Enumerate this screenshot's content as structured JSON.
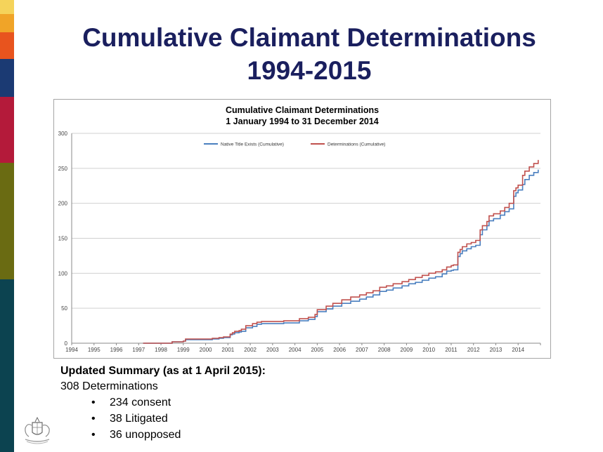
{
  "slide": {
    "title_line1": "Cumulative Claimant Determinations",
    "title_line2": "1994-2015",
    "title_color": "#1a1f5e",
    "band_colors": [
      "#f5d35a",
      "#f0a428",
      "#e8541e",
      "#1b3a73",
      "#b41a3a",
      "#6a6b12",
      "#0c4350"
    ]
  },
  "summary": {
    "heading": "Updated Summary (as at 1 April 2015):",
    "total": "308 Determinations",
    "items": [
      {
        "bullet": "•",
        "text": "234 consent"
      },
      {
        "bullet": "•",
        "text": "38 Litigated"
      },
      {
        "bullet": "•",
        "text": "36 unopposed"
      }
    ]
  },
  "chart_data": {
    "type": "line",
    "title": "Cumulative Claimant Determinations",
    "subtitle": "1 January 1994 to 31 December 2014",
    "xlabel": "",
    "ylabel": "",
    "x_ticks": [
      "1994",
      "1995",
      "1996",
      "1997",
      "1998",
      "1999",
      "2000",
      "2001",
      "2002",
      "2003",
      "2004",
      "2005",
      "2006",
      "2007",
      "2008",
      "2009",
      "2010",
      "2011",
      "2012",
      "2013",
      "2014"
    ],
    "xlim": [
      1994,
      2015
    ],
    "y_ticks": [
      "0",
      "50",
      "100",
      "150",
      "200",
      "250",
      "300"
    ],
    "ylim": [
      0,
      300
    ],
    "grid": true,
    "legend_position": "top",
    "series": [
      {
        "name": "Native Title Exists (Cumulative)",
        "color": "#4a7fbf",
        "x": [
          1997.2,
          1998.5,
          1999.0,
          1999.1,
          2000.3,
          2000.6,
          2000.7,
          2000.8,
          2000.9,
          2001.1,
          2001.2,
          2001.3,
          2001.5,
          2001.6,
          2001.8,
          2002.1,
          2002.3,
          2002.5,
          2003.5,
          2003.9,
          2004.2,
          2004.6,
          2004.9,
          2005.0,
          2005.4,
          2005.7,
          2006.1,
          2006.5,
          2006.9,
          2007.2,
          2007.5,
          2007.8,
          2008.1,
          2008.4,
          2008.8,
          2009.1,
          2009.4,
          2009.7,
          2010.0,
          2010.3,
          2010.6,
          2010.8,
          2011.0,
          2011.1,
          2011.3,
          2011.4,
          2011.5,
          2011.7,
          2011.9,
          2012.1,
          2012.3,
          2012.4,
          2012.6,
          2012.7,
          2012.9,
          2013.2,
          2013.4,
          2013.6,
          2013.8,
          2013.9,
          2014.0,
          2014.2,
          2014.3,
          2014.5,
          2014.7,
          2014.9
        ],
        "values": [
          0,
          2,
          3,
          5,
          6,
          7,
          7,
          8,
          8,
          12,
          13,
          15,
          16,
          17,
          22,
          24,
          27,
          28,
          29,
          29,
          32,
          34,
          38,
          45,
          49,
          53,
          57,
          60,
          63,
          66,
          69,
          74,
          76,
          79,
          82,
          85,
          87,
          90,
          93,
          95,
          99,
          103,
          104,
          105,
          124,
          128,
          132,
          135,
          138,
          140,
          155,
          162,
          168,
          175,
          178,
          183,
          188,
          192,
          210,
          215,
          219,
          227,
          234,
          240,
          244,
          248
        ]
      },
      {
        "name": "Determinations (Cumulative)",
        "color": "#c0504d",
        "x": [
          1997.2,
          1998.5,
          1999.0,
          1999.1,
          2000.3,
          2000.6,
          2000.7,
          2000.8,
          2000.9,
          2001.1,
          2001.2,
          2001.3,
          2001.5,
          2001.6,
          2001.8,
          2002.1,
          2002.3,
          2002.5,
          2003.5,
          2003.9,
          2004.2,
          2004.6,
          2004.9,
          2005.0,
          2005.4,
          2005.7,
          2006.1,
          2006.5,
          2006.9,
          2007.2,
          2007.5,
          2007.8,
          2008.1,
          2008.4,
          2008.8,
          2009.1,
          2009.4,
          2009.7,
          2010.0,
          2010.3,
          2010.6,
          2010.8,
          2011.0,
          2011.1,
          2011.3,
          2011.4,
          2011.5,
          2011.7,
          2011.9,
          2012.1,
          2012.3,
          2012.4,
          2012.6,
          2012.7,
          2012.9,
          2013.2,
          2013.4,
          2013.6,
          2013.8,
          2013.9,
          2014.0,
          2014.2,
          2014.3,
          2014.5,
          2014.7,
          2014.9
        ],
        "values": [
          0,
          2,
          3,
          6,
          7,
          8,
          8,
          9,
          9,
          13,
          15,
          17,
          18,
          20,
          25,
          28,
          30,
          31,
          32,
          32,
          35,
          37,
          41,
          48,
          53,
          57,
          62,
          66,
          69,
          72,
          75,
          80,
          82,
          85,
          88,
          91,
          94,
          97,
          100,
          102,
          105,
          109,
          111,
          112,
          130,
          134,
          138,
          142,
          144,
          147,
          162,
          168,
          174,
          182,
          185,
          189,
          194,
          200,
          218,
          222,
          226,
          240,
          246,
          252,
          257,
          262
        ]
      }
    ]
  }
}
